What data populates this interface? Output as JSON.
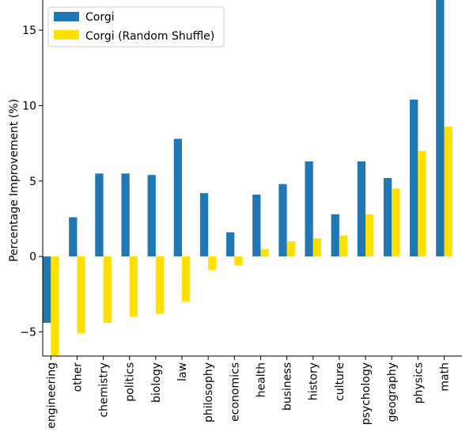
{
  "chart_data": {
    "type": "bar",
    "categories": [
      "engineering",
      "other",
      "chemistry",
      "politics",
      "biology",
      "law",
      "philosophy",
      "economics",
      "health",
      "business",
      "history",
      "culture",
      "psychology",
      "geography",
      "physics",
      "math"
    ],
    "series": [
      {
        "name": "Corgi",
        "color": "#1f77b4",
        "values": [
          -4.4,
          2.6,
          5.5,
          5.5,
          5.4,
          7.8,
          4.2,
          1.6,
          4.1,
          4.8,
          6.3,
          2.8,
          6.3,
          5.2,
          10.4,
          17.0
        ]
      },
      {
        "name": "Corgi (Random Shuffle)",
        "color": "#ffe000",
        "values": [
          -6.6,
          -5.1,
          -4.4,
          -4.0,
          -3.8,
          -3.0,
          -0.9,
          -0.6,
          0.5,
          1.0,
          1.2,
          1.4,
          2.8,
          4.5,
          7.0,
          8.6
        ]
      }
    ],
    "xlabel": "",
    "ylabel": "Percentage Improvement (%)",
    "ylim": [
      -6.6,
      17.0
    ],
    "yticks": [
      -5,
      0,
      5,
      10,
      15
    ],
    "grid": false,
    "legend": "top-left"
  }
}
